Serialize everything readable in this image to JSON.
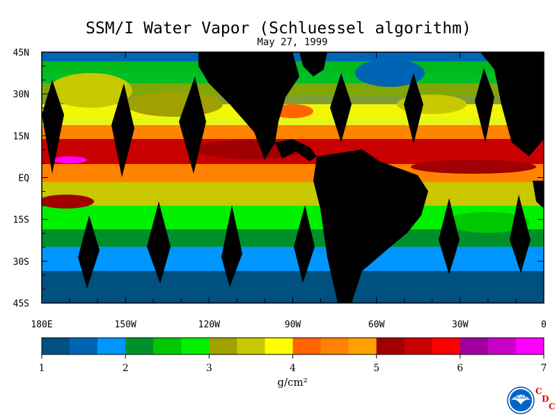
{
  "title": "SSM/I Water Vapor (Schluessel algorithm)",
  "date": "May 27, 1999",
  "lat_labels": [
    "45N",
    "30N",
    "15N",
    "EQ",
    "15S",
    "30S",
    "45S"
  ],
  "lon_labels": [
    "180E",
    "150W",
    "120W",
    "90W",
    "60W",
    "30W",
    "0"
  ],
  "colorbar": {
    "colors": [
      "#005080",
      "#0064b4",
      "#0096ff",
      "#00902a",
      "#00c800",
      "#00f000",
      "#a0a000",
      "#c8c800",
      "#ffff00",
      "#ff6400",
      "#ff8200",
      "#ffa000",
      "#a00000",
      "#c80000",
      "#ff0000",
      "#a000a0",
      "#c800c8",
      "#ff00ff"
    ],
    "tick_labels": [
      "1",
      "2",
      "3",
      "4",
      "5",
      "6",
      "7"
    ]
  },
  "units": "g/cm²",
  "logo": {
    "text": "NOAA",
    "letters": [
      "C",
      "D",
      "C"
    ]
  }
}
